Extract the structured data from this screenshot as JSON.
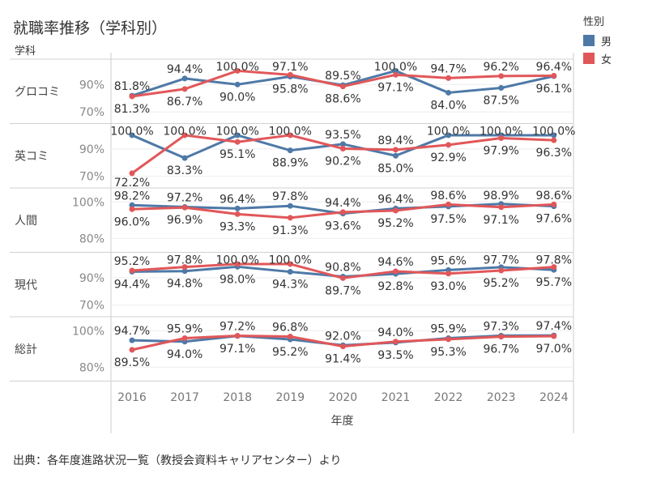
{
  "title": "就職率推移（学科別）",
  "row_header": "学科",
  "legend": {
    "title": "性別",
    "items": [
      {
        "label": "男",
        "color": "#4e79a7"
      },
      {
        "label": "女",
        "color": "#e15759"
      }
    ]
  },
  "footer": "出典：各年度進路状況一覧（教授会資料キャリアセンター）より",
  "chart_data": {
    "type": "line",
    "title": "就職率推移（学科別）",
    "xlabel": "年度",
    "ylabel": "",
    "x": [
      "2016",
      "2017",
      "2018",
      "2019",
      "2020",
      "2021",
      "2022",
      "2023",
      "2024"
    ],
    "legend_title": "性別",
    "legend_position": "top-right",
    "grid": true,
    "panels": [
      {
        "name": "グロコミ",
        "ylim": [
          65,
          105
        ],
        "yticks": [
          {
            "value": 90,
            "label": "90%"
          },
          {
            "value": 70,
            "label": "70%"
          }
        ],
        "series": [
          {
            "name": "男",
            "values": [
              81.8,
              94.4,
              90.0,
              95.8,
              89.5,
              100.0,
              84.0,
              87.5,
              96.1
            ]
          },
          {
            "name": "女",
            "values": [
              81.3,
              86.7,
              100.0,
              97.1,
              88.6,
              97.1,
              94.7,
              96.2,
              96.4
            ]
          }
        ]
      },
      {
        "name": "英コミ",
        "ylim": [
          65,
          105
        ],
        "yticks": [
          {
            "value": 90,
            "label": "90%"
          },
          {
            "value": 70,
            "label": "70%"
          }
        ],
        "series": [
          {
            "name": "男",
            "values": [
              100.0,
              83.3,
              100.0,
              88.9,
              93.5,
              85.0,
              100.0,
              100.0,
              100.0
            ]
          },
          {
            "name": "女",
            "values": [
              72.2,
              100.0,
              95.1,
              100.0,
              90.2,
              89.4,
              92.9,
              97.9,
              96.3
            ]
          }
        ]
      },
      {
        "name": "人間",
        "ylim": [
          75,
          105
        ],
        "yticks": [
          {
            "value": 100,
            "label": "100%"
          },
          {
            "value": 80,
            "label": "80%"
          }
        ],
        "series": [
          {
            "name": "男",
            "values": [
              98.2,
              97.2,
              96.4,
              97.8,
              93.6,
              96.4,
              97.5,
              98.9,
              97.6
            ]
          },
          {
            "name": "女",
            "values": [
              96.0,
              96.9,
              93.3,
              91.3,
              94.4,
              95.2,
              98.6,
              97.1,
              98.6
            ]
          }
        ]
      },
      {
        "name": "現代",
        "ylim": [
          65,
          105
        ],
        "yticks": [
          {
            "value": 90,
            "label": "90%"
          },
          {
            "value": 70,
            "label": "70%"
          }
        ],
        "series": [
          {
            "name": "男",
            "values": [
              94.4,
              94.8,
              98.0,
              94.3,
              90.8,
              92.8,
              95.6,
              97.7,
              95.7
            ]
          },
          {
            "name": "女",
            "values": [
              95.2,
              97.8,
              100.0,
              100.0,
              89.7,
              94.6,
              93.0,
              95.2,
              97.8
            ]
          }
        ]
      },
      {
        "name": "総計",
        "ylim": [
          75,
          105
        ],
        "yticks": [
          {
            "value": 100,
            "label": "100%"
          },
          {
            "value": 80,
            "label": "80%"
          }
        ],
        "series": [
          {
            "name": "男",
            "values": [
              94.7,
              94.0,
              97.1,
              95.2,
              92.0,
              93.5,
              95.9,
              97.3,
              97.4
            ]
          },
          {
            "name": "女",
            "values": [
              89.5,
              95.9,
              97.2,
              96.8,
              91.4,
              94.0,
              95.3,
              96.7,
              97.0
            ]
          }
        ]
      }
    ]
  }
}
